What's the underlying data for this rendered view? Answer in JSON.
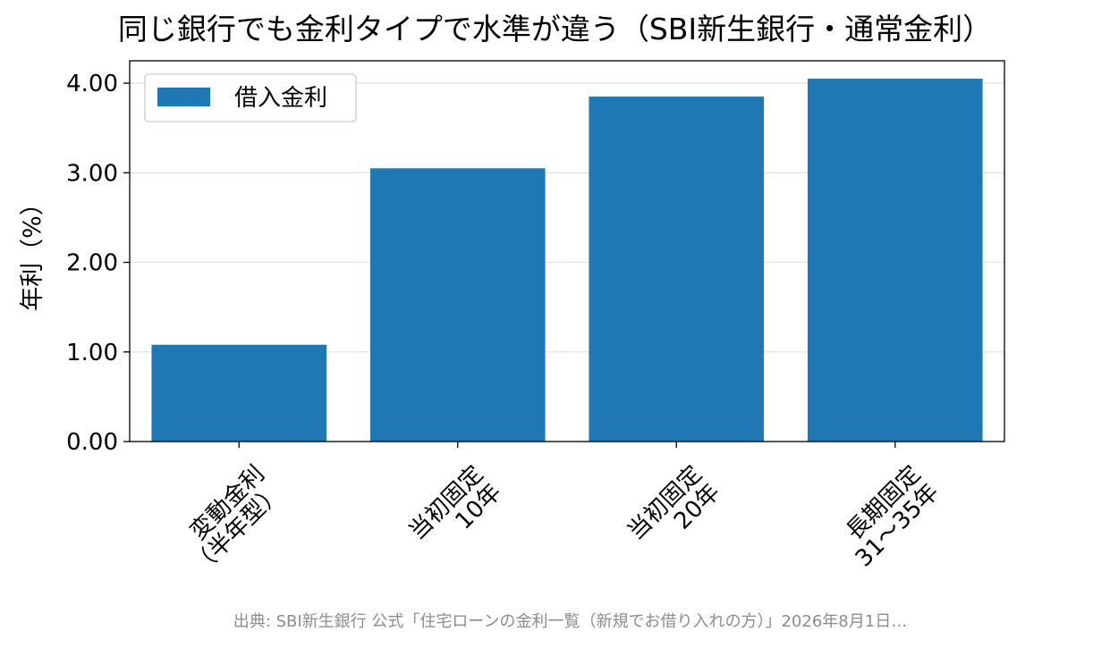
{
  "chart_data": {
    "type": "bar",
    "title": "同じ銀行でも金利タイプで水準が違う（SBI新生銀行・通常金利）",
    "xlabel": "",
    "ylabel": "年利（%）",
    "categories": [
      [
        "変動金利",
        "（半年型）"
      ],
      [
        "当初固定",
        "10年"
      ],
      [
        "当初固定",
        "20年"
      ],
      [
        "長期固定",
        "31〜35年"
      ]
    ],
    "series": [
      {
        "name": "借入金利",
        "values": [
          1.08,
          3.05,
          3.85,
          4.05
        ],
        "color": "#1f77b4"
      }
    ],
    "ylim": [
      0,
      4.25
    ],
    "yticks": [
      "0.00",
      "1.00",
      "2.00",
      "3.00",
      "4.00"
    ],
    "grid": "horizontal",
    "legend": "top-left",
    "source": "出典: SBI新生銀行 公式「住宅ローンの金利一覧（新規でお借り入れの方）」2026年8月1日…"
  }
}
